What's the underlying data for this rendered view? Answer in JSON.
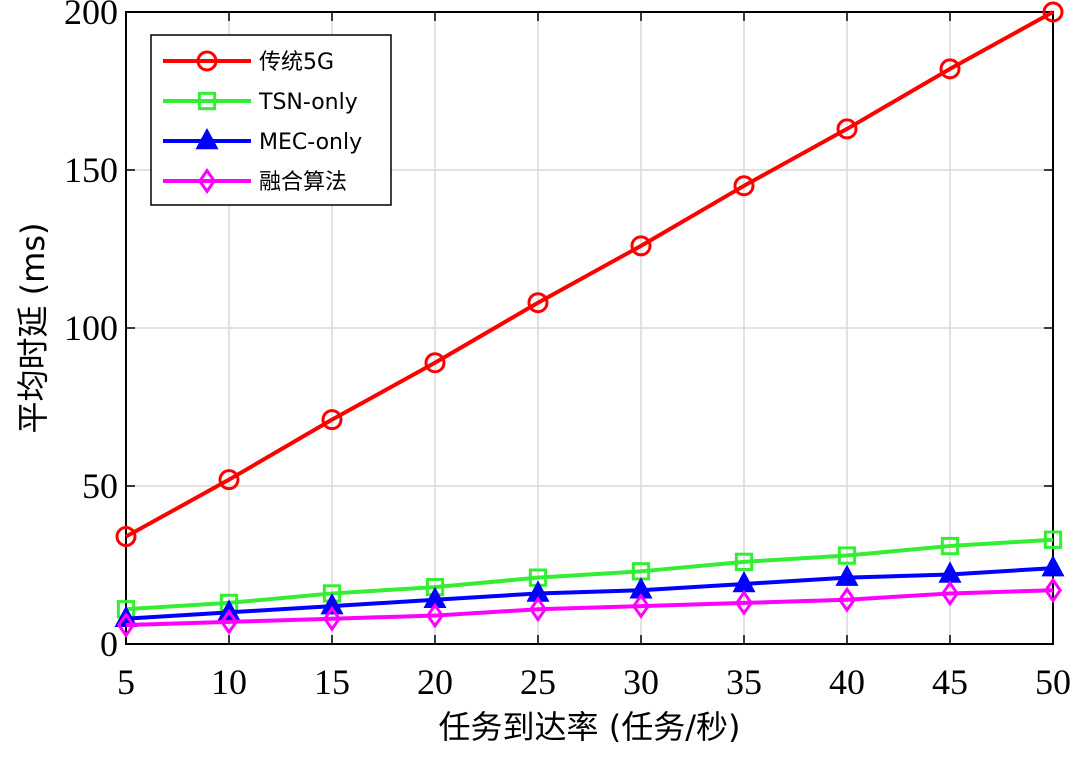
{
  "chart_data": {
    "type": "line",
    "xlabel": "任务到达率 (任务/秒)",
    "ylabel": "平均时延 (ms)",
    "x": [
      5,
      10,
      15,
      20,
      25,
      30,
      35,
      40,
      45,
      50
    ],
    "xlim": [
      5,
      50
    ],
    "ylim": [
      0,
      200
    ],
    "xticks": [
      "5",
      "10",
      "15",
      "20",
      "25",
      "30",
      "35",
      "40",
      "45",
      "50"
    ],
    "yticks": [
      "0",
      "50",
      "100",
      "150",
      "200"
    ],
    "grid": true,
    "legend_position": "top-left",
    "series": [
      {
        "name": "传统5G",
        "color": "#ff0000",
        "marker": "circle",
        "values": [
          34,
          52,
          71,
          89,
          108,
          126,
          145,
          163,
          182,
          200
        ]
      },
      {
        "name": "TSN-only",
        "color": "#33ee33",
        "marker": "square",
        "values": [
          11,
          13,
          16,
          18,
          21,
          23,
          26,
          28,
          31,
          33
        ]
      },
      {
        "name": "MEC-only",
        "color": "#0000ff",
        "marker": "triangle",
        "values": [
          8,
          10,
          12,
          14,
          16,
          17,
          19,
          21,
          22,
          24
        ]
      },
      {
        "name": "融合算法",
        "color": "#ff00ff",
        "marker": "diamond",
        "values": [
          6,
          7,
          8,
          9,
          11,
          12,
          13,
          14,
          16,
          17
        ]
      }
    ]
  }
}
